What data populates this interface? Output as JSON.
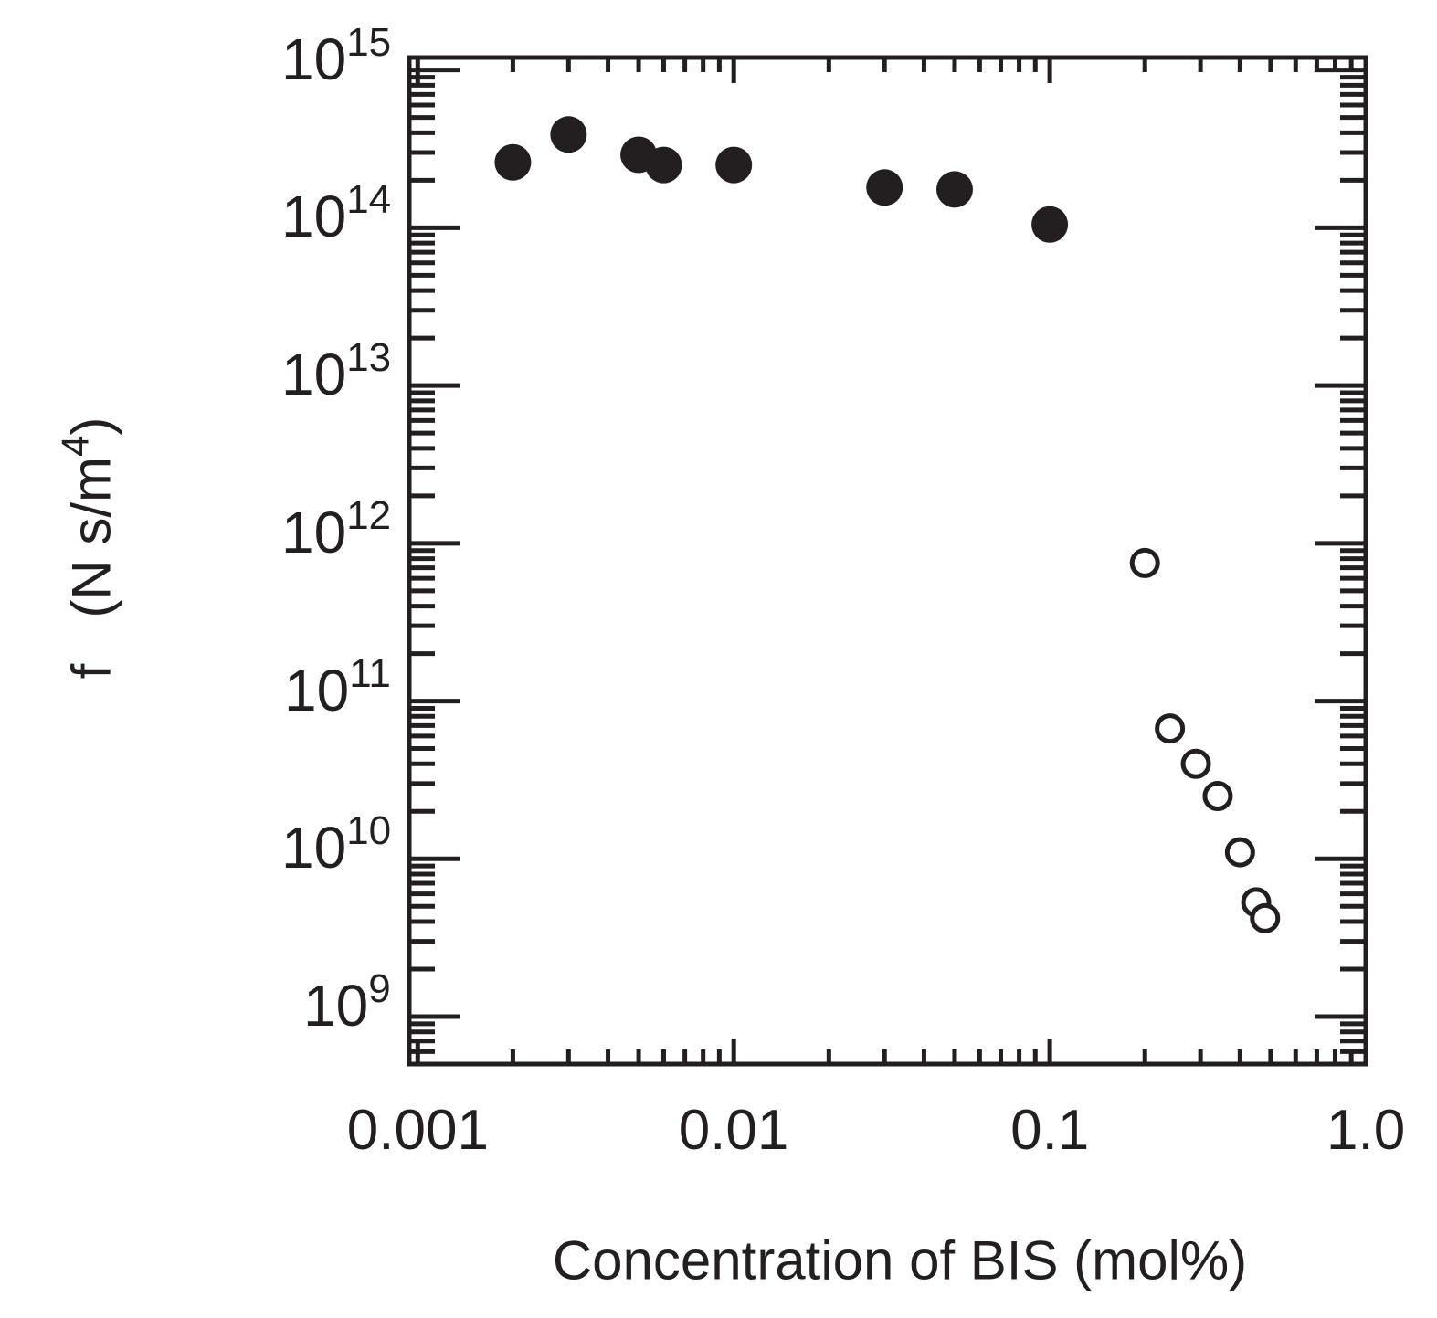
{
  "chart_data": {
    "type": "scatter",
    "title": "",
    "xlabel": "Concentration of BIS (mol%)",
    "ylabel": {
      "symbol": "f",
      "unit_open": "(N s/m",
      "unit_exp": "4",
      "unit_close": ")"
    },
    "x_scale": "log",
    "y_scale": "log",
    "xlim": [
      0.00094,
      1.0
    ],
    "ylim": [
      500000000.0,
      1200000000000000.0
    ],
    "x_tick_labels": [
      "0.001",
      "0.01",
      "0.1",
      "1.0"
    ],
    "x_ticks": [
      0.001,
      0.01,
      0.1,
      1.0
    ],
    "y_tick_labels": [
      {
        "base": "10",
        "exp": "15"
      },
      {
        "base": "10",
        "exp": "14"
      },
      {
        "base": "10",
        "exp": "13"
      },
      {
        "base": "10",
        "exp": "12"
      },
      {
        "base": "10",
        "exp": "11"
      },
      {
        "base": "10",
        "exp": "10"
      },
      {
        "base": "10",
        "exp": "9"
      }
    ],
    "y_ticks": [
      1000000000000000.0,
      100000000000000.0,
      10000000000000.0,
      1000000000000.0,
      100000000000.0,
      10000000000.0,
      1000000000.0
    ],
    "grid": false,
    "legend": "none",
    "series": [
      {
        "marker": "filled-circle",
        "color": "#231f20",
        "points": [
          {
            "x": 0.002,
            "y": 260000000000000.0
          },
          {
            "x": 0.003,
            "y": 390000000000000.0
          },
          {
            "x": 0.005,
            "y": 290000000000000.0
          },
          {
            "x": 0.006,
            "y": 250000000000000.0
          },
          {
            "x": 0.01,
            "y": 250000000000000.0
          },
          {
            "x": 0.03,
            "y": 180000000000000.0
          },
          {
            "x": 0.05,
            "y": 175000000000000.0
          },
          {
            "x": 0.1,
            "y": 105000000000000.0
          }
        ]
      },
      {
        "marker": "open-circle",
        "color": "#231f20",
        "points": [
          {
            "x": 0.2,
            "y": 750000000000.0
          },
          {
            "x": 0.24,
            "y": 67000000000.0
          },
          {
            "x": 0.29,
            "y": 40000000000.0
          },
          {
            "x": 0.34,
            "y": 25000000000.0
          },
          {
            "x": 0.4,
            "y": 11000000000.0
          },
          {
            "x": 0.45,
            "y": 5300000000.0
          },
          {
            "x": 0.48,
            "y": 4200000000.0
          }
        ]
      }
    ]
  }
}
